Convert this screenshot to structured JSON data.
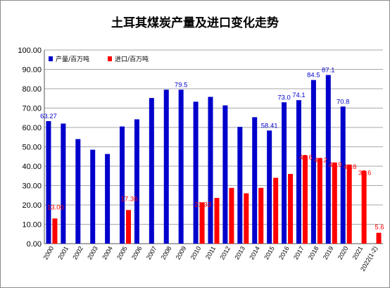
{
  "chart_data": {
    "type": "bar",
    "title": "土耳其煤炭产量及进口变化走势",
    "xlabel": "",
    "ylabel": "",
    "ylim": [
      0,
      100
    ],
    "yticks": [
      "0.00",
      "10.00",
      "20.00",
      "30.00",
      "40.00",
      "50.00",
      "60.00",
      "70.00",
      "80.00",
      "90.00",
      "100.00"
    ],
    "ytick_values": [
      0,
      10,
      20,
      30,
      40,
      50,
      60,
      70,
      80,
      90,
      100
    ],
    "grid": "horizontal",
    "legend_position": "top-left",
    "categories": [
      "2000",
      "2001",
      "2002",
      "2003",
      "2004",
      "2005",
      "2006",
      "2007",
      "2008",
      "2009",
      "2010",
      "2011",
      "2012",
      "2013",
      "2014",
      "2015",
      "2016",
      "2017",
      "2018",
      "2019",
      "2020",
      "2021",
      "2022(1-2)"
    ],
    "series": [
      {
        "name": "产量/百万吨",
        "color": "#0000cc",
        "values": [
          63.27,
          62,
          54,
          48.5,
          46.3,
          60.5,
          64.2,
          75.2,
          79.5,
          79.5,
          73.3,
          75.8,
          71.4,
          60.3,
          65.3,
          58.41,
          73.0,
          74.1,
          84.5,
          87.1,
          70.8,
          null,
          null
        ],
        "labels": [
          "63.27",
          "",
          "",
          "",
          "",
          "",
          "",
          "",
          "",
          "79.5",
          "",
          "",
          "",
          "",
          "",
          "58.41",
          "73.0",
          "74.1",
          "84.5",
          "87.1",
          "70.8",
          "",
          ""
        ]
      },
      {
        "name": "进口/百万吨",
        "color": "#ff0000",
        "values": [
          13.0,
          null,
          null,
          null,
          null,
          17.36,
          null,
          null,
          null,
          null,
          21.33,
          23.6,
          28.8,
          26.0,
          28.8,
          34.0,
          36.0,
          45.6,
          44.2,
          41.9,
          40.8,
          37.6,
          5.6
        ],
        "labels": [
          "13.00",
          "",
          "",
          "",
          "",
          "17.36",
          "",
          "",
          "",
          "",
          "21.33",
          "",
          "",
          "",
          "",
          "",
          "",
          "45.6",
          "44.2",
          "41.9",
          "40.8",
          "37.6",
          "5.6"
        ]
      }
    ]
  }
}
